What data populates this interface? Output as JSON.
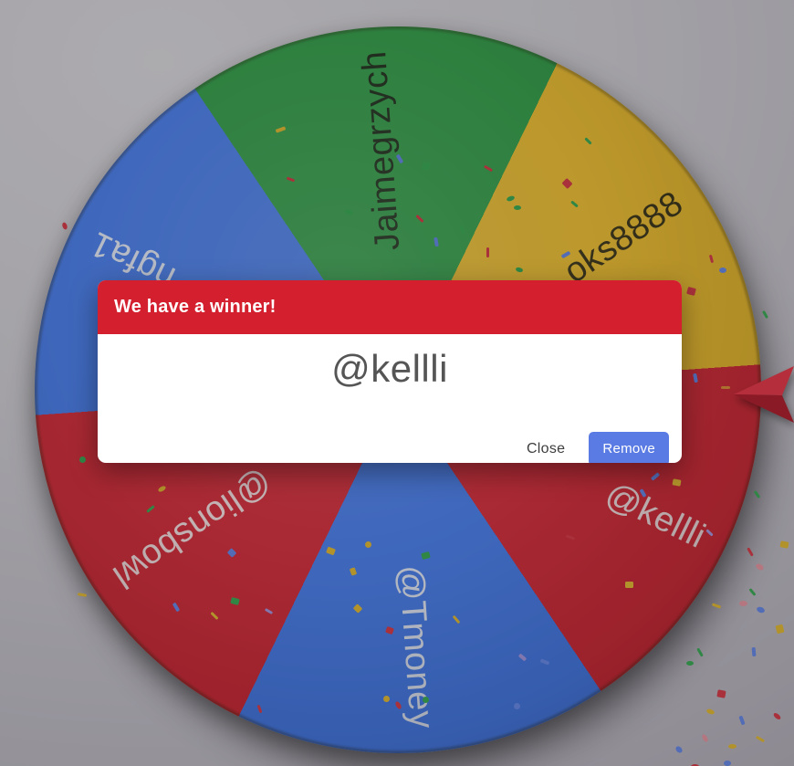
{
  "dialog": {
    "title": "We have a winner!",
    "winner": "@kellli",
    "close_label": "Close",
    "remove_label": "Remove",
    "header_color": "#d31f2e",
    "remove_button_color": "#5a7be3"
  },
  "wheel": {
    "colors": {
      "green": "#35a24c",
      "yellow": "#f2c233",
      "red": "#d92f3d",
      "blue": "#4c82f2"
    },
    "segments": [
      {
        "label": "Jaimegrzych",
        "color": "green",
        "text": "dark",
        "angle": -4
      },
      {
        "label": "oks8888",
        "color": "yellow",
        "text": "dark",
        "angle": 56
      },
      {
        "label": "@kellli",
        "color": "red",
        "text": "light",
        "angle": 116
      },
      {
        "label": "@Tmoney",
        "color": "blue",
        "text": "light",
        "angle": 176
      },
      {
        "label": "@lionsbowl",
        "color": "red",
        "text": "light",
        "angle": 236
      },
      {
        "label": "ngfa1",
        "color": "blue",
        "text": "light",
        "angle": 296
      }
    ]
  },
  "pointer": {
    "name": "wheel-pointer",
    "color_top": "#ea3c4e",
    "color_bottom": "#b22231"
  },
  "confetti_colors": {
    "r": "#d9404d",
    "g": "#3fae59",
    "y": "#e6bc38",
    "b": "#6a8bea",
    "p": "#e89aa5",
    "v": "#a79ae0",
    "o": "#dd8f3d"
  },
  "confetti": [
    [
      302,
      140,
      11,
      4,
      "y",
      -20,
      0
    ],
    [
      433,
      172,
      10,
      4,
      "b",
      60,
      0
    ],
    [
      463,
      178,
      8,
      8,
      "g",
      10,
      0
    ],
    [
      378,
      230,
      9,
      5,
      "g",
      20,
      1
    ],
    [
      455,
      238,
      10,
      3,
      "r",
      45,
      0
    ],
    [
      473,
      263,
      10,
      4,
      "b",
      80,
      0
    ],
    [
      529,
      275,
      11,
      3,
      "r",
      90,
      0
    ],
    [
      530,
      183,
      10,
      3,
      "r",
      30,
      0
    ],
    [
      555,
      215,
      9,
      5,
      "g",
      -20,
      1
    ],
    [
      502,
      250,
      9,
      3,
      "g",
      70,
      0
    ],
    [
      314,
      195,
      9,
      3,
      "r",
      20,
      0
    ],
    [
      617,
      197,
      9,
      8,
      "r",
      45,
      0
    ],
    [
      563,
      225,
      8,
      5,
      "g",
      0,
      1
    ],
    [
      625,
      222,
      9,
      3,
      "g",
      40,
      0
    ],
    [
      615,
      277,
      10,
      4,
      "b",
      -30,
      0
    ],
    [
      565,
      293,
      8,
      5,
      "g",
      15,
      1
    ],
    [
      640,
      153,
      9,
      3,
      "g",
      45,
      0
    ],
    [
      753,
      315,
      9,
      8,
      "r",
      15,
      0
    ],
    [
      788,
      293,
      8,
      6,
      "b",
      0,
      1
    ],
    [
      775,
      282,
      9,
      3,
      "r",
      75,
      0
    ],
    [
      834,
      343,
      9,
      3,
      "g",
      60,
      0
    ],
    [
      757,
      412,
      10,
      4,
      "b",
      80,
      0
    ],
    [
      790,
      423,
      10,
      3,
      "o",
      0,
      0
    ],
    [
      67,
      245,
      8,
      5,
      "r",
      70,
      1
    ],
    [
      87,
      500,
      7,
      7,
      "g",
      0,
      1
    ],
    [
      173,
      533,
      9,
      5,
      "y",
      -30,
      1
    ],
    [
      160,
      556,
      10,
      3,
      "g",
      -40,
      0
    ],
    [
      85,
      650,
      10,
      3,
      "y",
      10,
      0
    ],
    [
      250,
      602,
      8,
      7,
      "b",
      45,
      0
    ],
    [
      358,
      600,
      9,
      7,
      "y",
      20,
      0
    ],
    [
      253,
      655,
      9,
      7,
      "g",
      15,
      0
    ],
    [
      230,
      673,
      10,
      3,
      "y",
      45,
      0
    ],
    [
      188,
      663,
      10,
      4,
      "b",
      60,
      0
    ],
    [
      290,
      668,
      9,
      3,
      "v",
      30,
      0
    ],
    [
      280,
      775,
      9,
      3,
      "r",
      70,
      0
    ],
    [
      400,
      593,
      7,
      7,
      "y",
      0,
      1
    ],
    [
      462,
      605,
      9,
      7,
      "g",
      -15,
      0
    ],
    [
      383,
      623,
      8,
      6,
      "y",
      70,
      0
    ],
    [
      388,
      663,
      8,
      7,
      "y",
      45,
      0
    ],
    [
      423,
      687,
      8,
      7,
      "r",
      20,
      0
    ],
    [
      495,
      677,
      10,
      3,
      "y",
      50,
      0
    ],
    [
      568,
      718,
      9,
      4,
      "v",
      40,
      0
    ],
    [
      592,
      723,
      10,
      4,
      "b",
      20,
      0
    ],
    [
      420,
      762,
      7,
      7,
      "y",
      0,
      1
    ],
    [
      432,
      770,
      9,
      5,
      "r",
      60,
      1
    ],
    [
      463,
      763,
      7,
      7,
      "g",
      0,
      1
    ],
    [
      563,
      770,
      7,
      7,
      "b",
      0,
      1
    ],
    [
      620,
      587,
      10,
      3,
      "r",
      20,
      0
    ],
    [
      713,
      520,
      10,
      4,
      "b",
      -40,
      0
    ],
    [
      737,
      525,
      9,
      7,
      "y",
      10,
      0
    ],
    [
      700,
      538,
      9,
      4,
      "b",
      60,
      0
    ],
    [
      825,
      540,
      9,
      3,
      "g",
      55,
      0
    ],
    [
      685,
      637,
      9,
      7,
      "y",
      0,
      0
    ],
    [
      773,
      582,
      9,
      3,
      "v",
      45,
      0
    ],
    [
      817,
      603,
      10,
      3,
      "r",
      60,
      0
    ],
    [
      828,
      618,
      9,
      6,
      "p",
      30,
      1
    ],
    [
      855,
      593,
      9,
      7,
      "y",
      10,
      0
    ],
    [
      810,
      658,
      9,
      6,
      "p",
      0,
      1
    ],
    [
      829,
      665,
      9,
      6,
      "b",
      20,
      1
    ],
    [
      820,
      647,
      9,
      3,
      "g",
      50,
      0
    ],
    [
      780,
      662,
      10,
      3,
      "y",
      20,
      0
    ],
    [
      850,
      685,
      9,
      8,
      "y",
      75,
      0
    ],
    [
      762,
      713,
      10,
      3,
      "g",
      60,
      0
    ],
    [
      752,
      724,
      8,
      5,
      "g",
      0,
      1
    ],
    [
      821,
      712,
      10,
      4,
      "b",
      85,
      0
    ],
    [
      786,
      756,
      9,
      8,
      "r",
      10,
      0
    ],
    [
      774,
      777,
      9,
      5,
      "y",
      20,
      1
    ],
    [
      808,
      787,
      10,
      4,
      "b",
      70,
      0
    ],
    [
      847,
      782,
      9,
      5,
      "r",
      40,
      1
    ],
    [
      768,
      806,
      9,
      5,
      "p",
      60,
      1
    ],
    [
      798,
      815,
      9,
      5,
      "y",
      0,
      1
    ],
    [
      828,
      808,
      10,
      3,
      "y",
      30,
      0
    ],
    [
      740,
      818,
      8,
      6,
      "b",
      45,
      1
    ],
    [
      793,
      833,
      8,
      6,
      "b",
      0,
      1
    ],
    [
      757,
      837,
      9,
      5,
      "r",
      0,
      1
    ]
  ]
}
